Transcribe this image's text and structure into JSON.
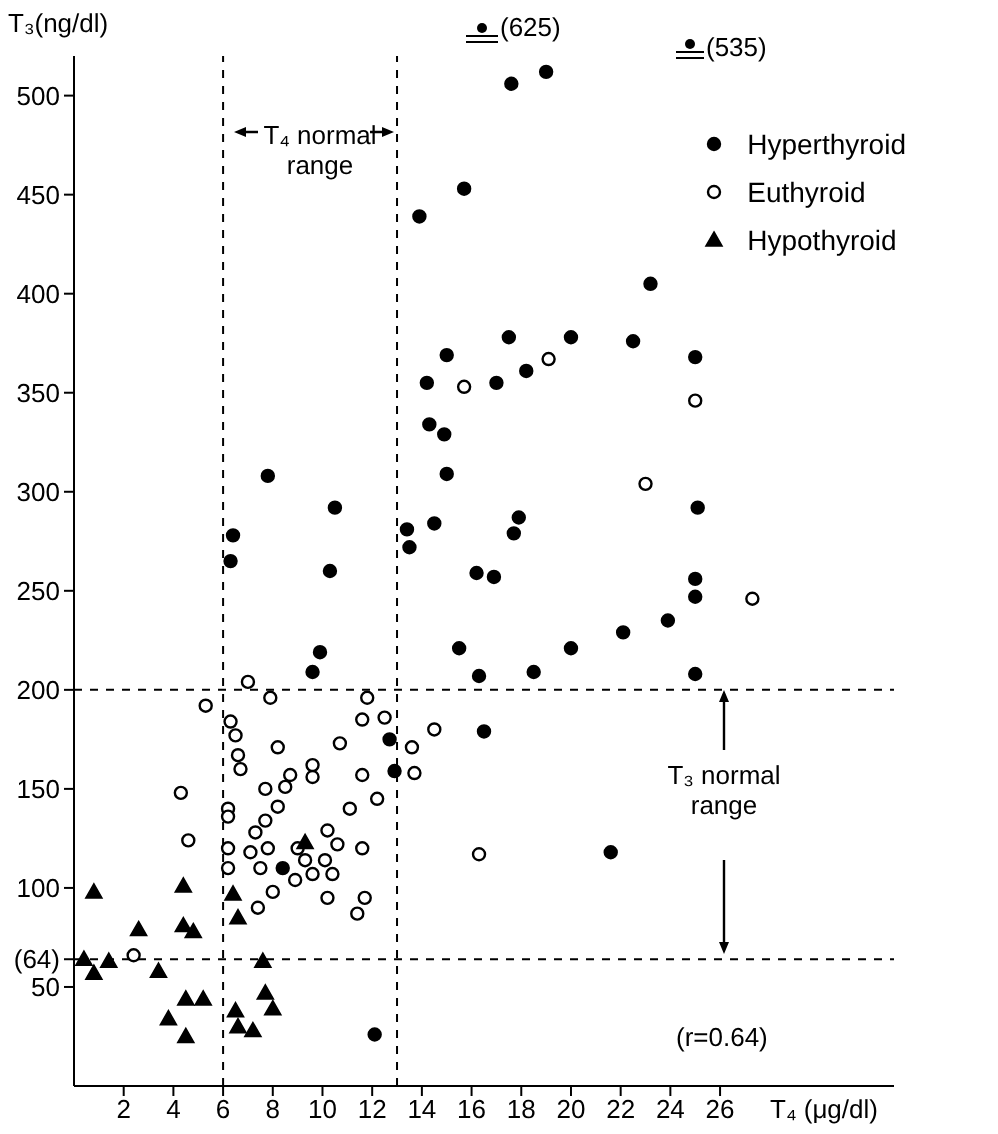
{
  "chart_data": {
    "type": "scatter",
    "xlabel": "T₄ (μg/dl)",
    "ylabel": "T₃(ng/dl)",
    "xlim": [
      0,
      33
    ],
    "ylim": [
      0,
      520
    ],
    "xticks": [
      2,
      4,
      6,
      8,
      10,
      12,
      14,
      16,
      18,
      20,
      22,
      24,
      26
    ],
    "yticks": [
      50,
      {
        "value": 64,
        "label": "(64)"
      },
      100,
      150,
      200,
      250,
      300,
      350,
      400,
      450,
      500
    ],
    "grid": false,
    "legend": "top right",
    "series": [
      {
        "name": "Hyperthyroid",
        "color": "#000000",
        "marker": "circle",
        "x": [
          17.6,
          19.0,
          15.7,
          13.9,
          23.2,
          17.5,
          20.0,
          22.5,
          15.0,
          25.0,
          14.2,
          17.0,
          18.2,
          14.3,
          14.9,
          15.0,
          25.1,
          13.4,
          14.5,
          17.9,
          17.7,
          13.5,
          16.2,
          16.9,
          25.0,
          25.0,
          23.9,
          22.1,
          15.5,
          20.0,
          16.3,
          18.5,
          25.0,
          7.8,
          10.5,
          6.4,
          6.3,
          10.3,
          9.9,
          9.6,
          16.5,
          12.7,
          12.9,
          8.4,
          21.6,
          12.1
        ],
        "values": [
          506,
          512,
          453,
          439,
          405,
          378,
          378,
          376,
          369,
          368,
          355,
          355,
          361,
          334,
          329,
          309,
          292,
          281,
          284,
          287,
          279,
          272,
          259,
          257,
          256,
          247,
          235,
          229,
          221,
          221,
          207,
          209,
          208,
          308,
          292,
          278,
          265,
          260,
          219,
          209,
          179,
          175,
          159,
          110,
          118,
          26
        ]
      },
      {
        "name": "Euthyroid",
        "color": "#ffffff",
        "marker": "circle",
        "x": [
          15.7,
          19.1,
          25.0,
          23.0,
          27.3,
          14.5,
          7.0,
          5.3,
          7.9,
          11.8,
          6.3,
          11.6,
          12.5,
          6.5,
          8.2,
          10.7,
          13.6,
          6.6,
          6.7,
          9.6,
          9.6,
          8.7,
          11.6,
          13.7,
          7.7,
          8.5,
          12.2,
          4.3,
          6.2,
          6.2,
          7.3,
          8.2,
          7.7,
          11.1,
          4.6,
          6.2,
          7.1,
          7.8,
          9.0,
          10.2,
          10.6,
          11.6,
          9.3,
          10.1,
          6.2,
          7.5,
          9.6,
          10.4,
          8.9,
          8.0,
          10.2,
          11.7,
          11.4,
          7.4,
          16.3,
          2.4
        ],
        "values": [
          353,
          367,
          346,
          304,
          246,
          180,
          204,
          192,
          196,
          196,
          184,
          185,
          186,
          177,
          171,
          173,
          171,
          167,
          160,
          162,
          156,
          157,
          157,
          158,
          150,
          151,
          145,
          148,
          140,
          136,
          128,
          141,
          134,
          140,
          124,
          120,
          118,
          120,
          120,
          129,
          122,
          120,
          114,
          114,
          110,
          110,
          107,
          107,
          104,
          98,
          95,
          95,
          87,
          90,
          117,
          66
        ]
      },
      {
        "name": "Hypothyroid",
        "color": "#000000",
        "marker": "triangle",
        "x": [
          9.3,
          0.8,
          4.4,
          6.4,
          2.6,
          4.4,
          4.8,
          6.6,
          0.4,
          1.4,
          0.8,
          7.6,
          3.4,
          4.5,
          5.2,
          7.7,
          3.8,
          4.5,
          6.5,
          8.0,
          6.6,
          7.2
        ],
        "values": [
          123,
          98,
          101,
          97,
          79,
          81,
          78,
          85,
          64,
          63,
          57,
          63,
          58,
          44,
          44,
          47,
          34,
          25,
          38,
          39,
          30,
          28
        ]
      }
    ],
    "ref_lines": [
      {
        "axis": "x",
        "value": 6,
        "line_style": "dashed",
        "color": "#000000"
      },
      {
        "axis": "x",
        "value": 13,
        "line_style": "dashed",
        "color": "#000000"
      },
      {
        "axis": "y",
        "value": 200,
        "line_style": "dashed",
        "color": "#000000"
      },
      {
        "axis": "y",
        "value": 64,
        "line_style": "dashed",
        "color": "#000000"
      }
    ],
    "annotations": [
      "T₄ normal range",
      "T₃ normal range",
      "(625)",
      "(535)",
      "(r=0.64)"
    ]
  }
}
